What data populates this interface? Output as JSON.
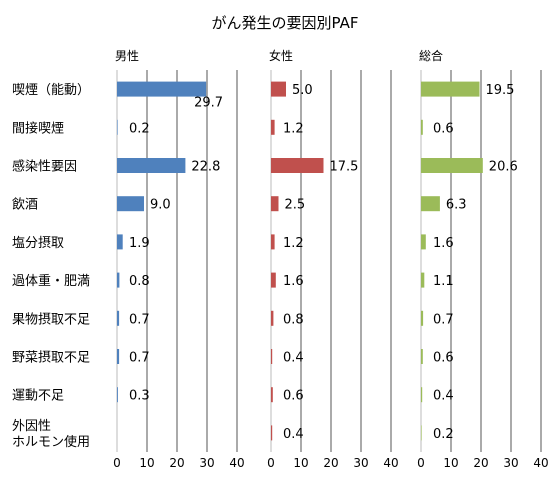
{
  "chart_data": {
    "type": "bar",
    "orientation": "horizontal",
    "title": "がん発生の要因別PAF",
    "categories": [
      "喫煙（能動）",
      "間接喫煙",
      "感染性要因",
      "飲酒",
      "塩分摂取",
      "過体重・肥満",
      "果物摂取不足",
      "野菜摂取不足",
      "運動不足",
      "外因性\nホルモン使用"
    ],
    "xlim": [
      0,
      40
    ],
    "xticks": [
      0,
      10,
      20,
      30,
      40
    ],
    "grid": true,
    "panels": [
      {
        "name": "男性",
        "color": "#4F81BD",
        "values": [
          29.7,
          0.2,
          22.8,
          9.0,
          1.9,
          0.8,
          0.7,
          0.7,
          0.3,
          null
        ],
        "labels": [
          "29.7",
          "0.2",
          "22.8",
          "9.0",
          "1.9",
          "0.8",
          "0.7",
          "0.7",
          "0.3",
          ""
        ]
      },
      {
        "name": "女性",
        "color": "#C0504D",
        "values": [
          5.0,
          1.2,
          17.5,
          2.5,
          1.2,
          1.6,
          0.8,
          0.4,
          0.6,
          0.4
        ],
        "labels": [
          "5.0",
          "1.2",
          "17.5",
          "2.5",
          "1.2",
          "1.6",
          "0.8",
          "0.4",
          "0.6",
          "0.4"
        ]
      },
      {
        "name": "総合",
        "color": "#9BBB59",
        "values": [
          19.5,
          0.6,
          20.6,
          6.3,
          1.6,
          1.1,
          0.7,
          0.6,
          0.4,
          0.2
        ],
        "labels": [
          "19.5",
          "0.6",
          "20.6",
          "6.3",
          "1.6",
          "1.1",
          "0.7",
          "0.6",
          "0.4",
          "0.2"
        ]
      }
    ]
  }
}
